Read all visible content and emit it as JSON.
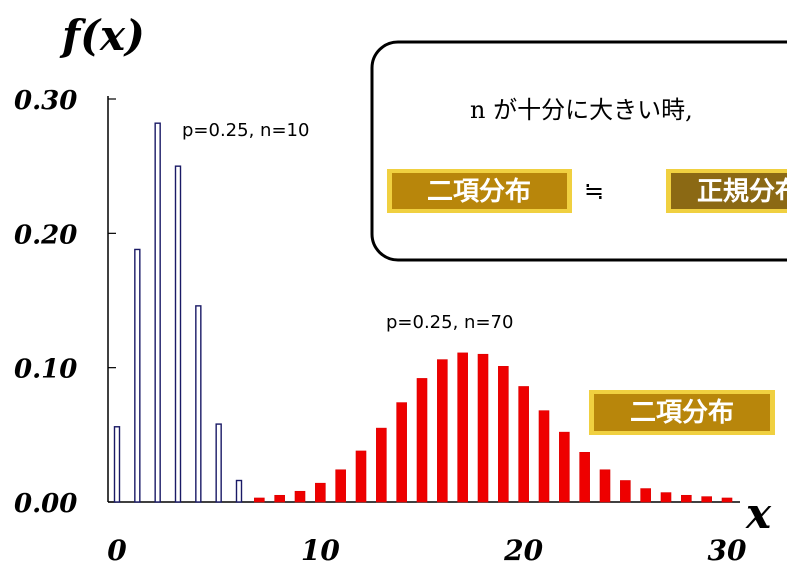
{
  "chart_data": {
    "type": "bar",
    "ylabel": "f(x)",
    "xlabel": "x",
    "ylim": [
      0,
      0.3
    ],
    "xlim": [
      0,
      30
    ],
    "yticks": [
      "0.00",
      "0.10",
      "0.20",
      "0.30"
    ],
    "xticks": [
      "0",
      "10",
      "20",
      "30"
    ],
    "series": [
      {
        "name": "p=0.25, n=10",
        "color": "#1a1a66",
        "fill": "#ffffff",
        "x": [
          0,
          1,
          2,
          3,
          4,
          5,
          6
        ],
        "values": [
          0.056,
          0.188,
          0.282,
          0.25,
          0.146,
          0.058,
          0.016
        ]
      },
      {
        "name": "p=0.25, n=70",
        "color": "#dd0000",
        "fill": "#ee0000",
        "x": [
          7,
          8,
          9,
          10,
          11,
          12,
          13,
          14,
          15,
          16,
          17,
          18,
          19,
          20,
          21,
          22,
          23,
          24,
          25,
          26,
          27,
          28,
          29,
          30
        ],
        "values": [
          0.003,
          0.005,
          0.008,
          0.014,
          0.024,
          0.038,
          0.055,
          0.074,
          0.092,
          0.106,
          0.111,
          0.11,
          0.101,
          0.086,
          0.068,
          0.052,
          0.037,
          0.024,
          0.016,
          0.01,
          0.007,
          0.005,
          0.004,
          0.003
        ]
      }
    ]
  },
  "callout": {
    "text": "n が十分に大きい時,",
    "left_badge": "二項分布",
    "approx_symbol": "≒",
    "right_badge": "正規分布"
  },
  "side_badge": "二項分布",
  "colors": {
    "badge_fill": "#b8860b",
    "badge_fill_dark": "#8b6914",
    "badge_border": "#f0d040"
  }
}
